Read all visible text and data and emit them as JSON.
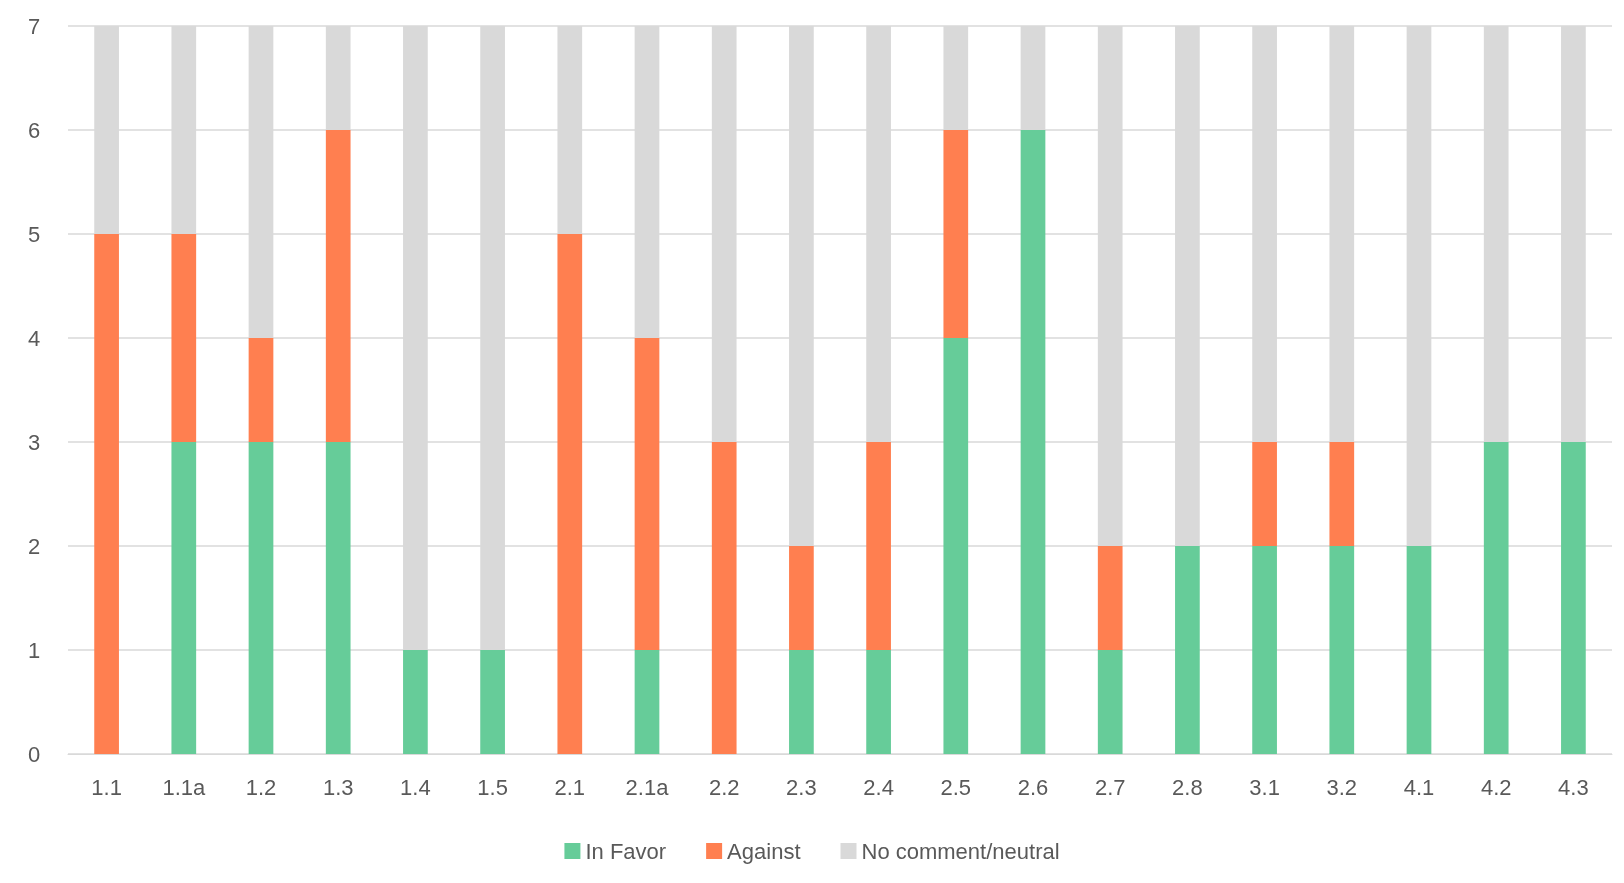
{
  "chart_data": {
    "type": "bar",
    "stacked": true,
    "categories": [
      "1.1",
      "1.1a",
      "1.2",
      "1.3",
      "1.4",
      "1.5",
      "2.1",
      "2.1a",
      "2.2",
      "2.3",
      "2.4",
      "2.5",
      "2.6",
      "2.7",
      "2.8",
      "3.1",
      "3.2",
      "4.1",
      "4.2",
      "4.3"
    ],
    "series": [
      {
        "name": "In Favor",
        "color": "#66cc99",
        "values": [
          0,
          3,
          3,
          3,
          1,
          1,
          0,
          1,
          0,
          1,
          1,
          4,
          6,
          1,
          2,
          2,
          2,
          2,
          3,
          3
        ]
      },
      {
        "name": "Against",
        "color": "#ff7f50",
        "values": [
          5,
          2,
          1,
          3,
          0,
          0,
          5,
          3,
          3,
          1,
          2,
          2,
          0,
          1,
          0,
          1,
          1,
          0,
          0,
          0
        ]
      },
      {
        "name": "No comment/neutral",
        "color": "#d9d9d9",
        "values": [
          2,
          2,
          3,
          1,
          6,
          6,
          2,
          3,
          4,
          5,
          4,
          1,
          1,
          5,
          5,
          4,
          4,
          5,
          4,
          4
        ]
      }
    ],
    "ylim": [
      0,
      7
    ],
    "yticks": [
      0,
      1,
      2,
      3,
      4,
      5,
      6,
      7
    ],
    "grid": "y",
    "legend": "bottom"
  }
}
